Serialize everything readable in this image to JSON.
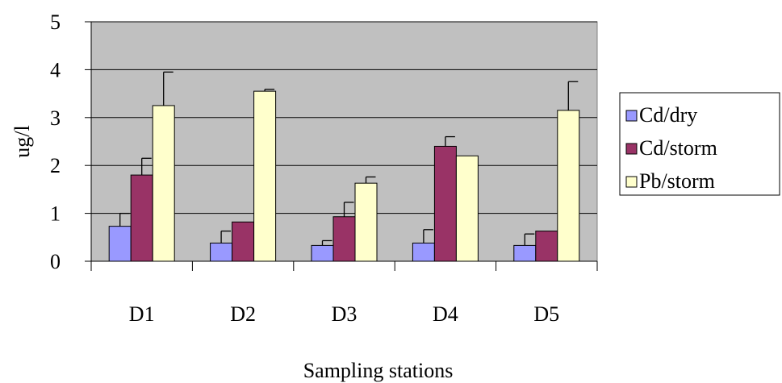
{
  "chart_data": {
    "type": "bar",
    "title": "",
    "xlabel": "Sampling stations",
    "ylabel": "ug/l",
    "ylim": [
      0,
      5
    ],
    "yticks": [
      0,
      1,
      2,
      3,
      4,
      5
    ],
    "grid": true,
    "legend_position": "right",
    "categories": [
      "D1",
      "D2",
      "D3",
      "D4",
      "D5"
    ],
    "series": [
      {
        "name": "Cd/dry",
        "color": "#9999ff",
        "values": [
          0.73,
          0.38,
          0.33,
          0.38,
          0.33
        ],
        "errors": [
          0.27,
          0.25,
          0.1,
          0.28,
          0.24
        ]
      },
      {
        "name": "Cd/storm",
        "color": "#993366",
        "values": [
          1.8,
          0.82,
          0.93,
          2.4,
          0.63
        ],
        "errors": [
          0.35,
          0.0,
          0.3,
          0.2,
          0.0
        ]
      },
      {
        "name": "Pb/storm",
        "color": "#ffffcc",
        "values": [
          3.25,
          3.55,
          1.63,
          2.2,
          3.15
        ],
        "errors": [
          0.7,
          0.04,
          0.13,
          0.0,
          0.6
        ]
      }
    ],
    "plot_background": "#c0c0c0",
    "gridline_color": "#000000"
  }
}
